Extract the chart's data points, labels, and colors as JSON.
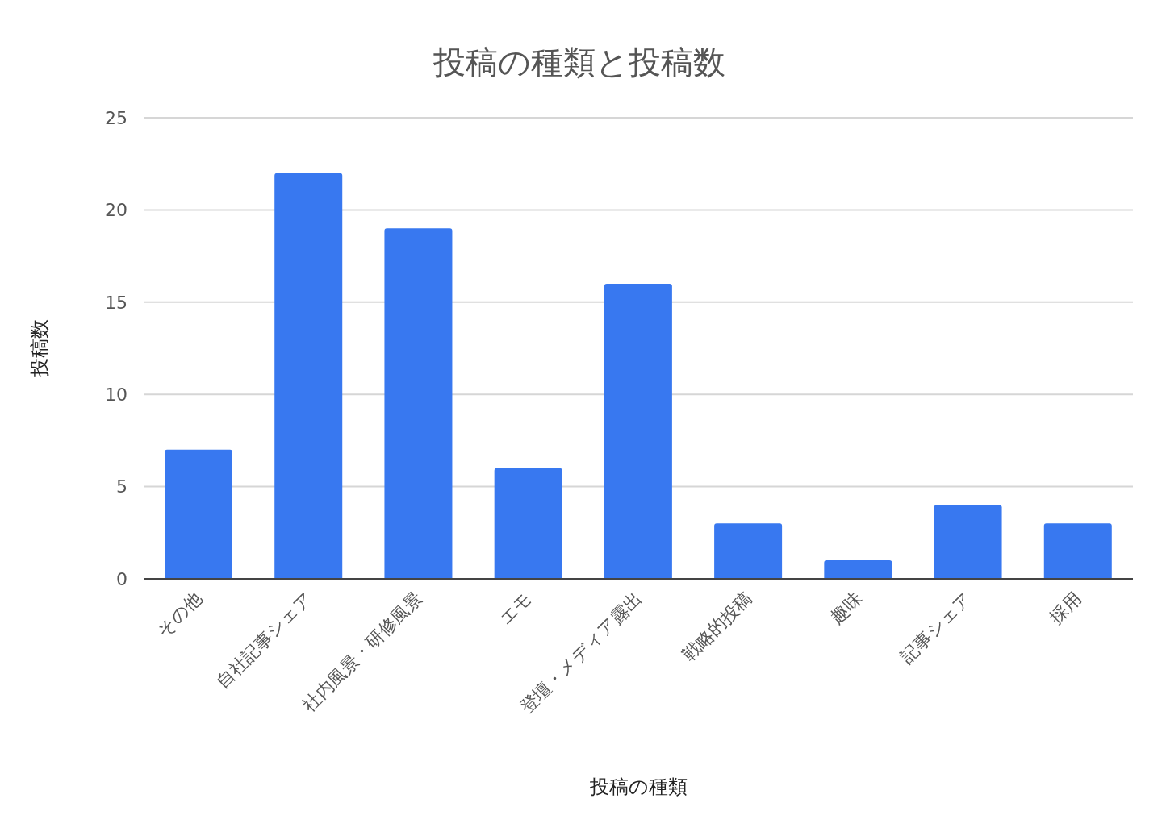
{
  "chart_data": {
    "type": "bar",
    "title": "投稿の種類と投稿数",
    "xlabel": "投稿の種類",
    "ylabel": "投稿数",
    "categories": [
      "その他",
      "自社記事シェア",
      "社内風景・研修風景",
      "エモ",
      "登壇・メディア露出",
      "戦略的投稿",
      "趣味",
      "記事シェア",
      "採用"
    ],
    "values": [
      7,
      22,
      19,
      6,
      16,
      3,
      1,
      4,
      3
    ],
    "color": "#3878f0",
    "ylim": [
      0,
      25
    ],
    "yticks": [
      0,
      5,
      10,
      15,
      20,
      25
    ],
    "grid": "y",
    "legend": false
  }
}
